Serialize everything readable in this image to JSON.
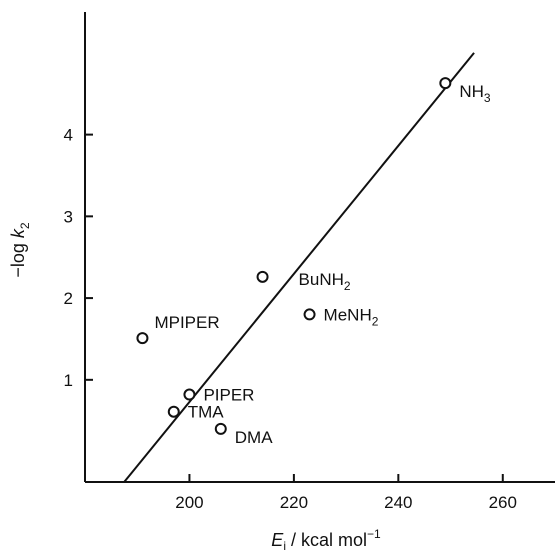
{
  "chart_data": {
    "type": "scatter",
    "xlabel": {
      "main": "E",
      "sub": "i",
      "rest": " / kcal  mol",
      "sup": "−1"
    },
    "ylabel": {
      "main": "−log ",
      "var": "k",
      "sub": "2"
    },
    "xlim": [
      180,
      270
    ],
    "ylim": [
      -0.25,
      5.5
    ],
    "x_ticks": [
      200,
      220,
      240,
      260
    ],
    "y_ticks": [
      1,
      2,
      3,
      4
    ],
    "grid": false,
    "points": [
      {
        "label": "NH",
        "label_sub": "3",
        "x": 249,
        "y": 4.63,
        "label_side": "right-below"
      },
      {
        "label": "BuNH",
        "label_sub": "2",
        "x": 214,
        "y": 2.26,
        "label_side": "right-far"
      },
      {
        "label": "MeNH",
        "label_sub": "2",
        "x": 223,
        "y": 1.8,
        "label_side": "right"
      },
      {
        "label": "MPIPER",
        "label_sub": "",
        "x": 191,
        "y": 1.51,
        "label_side": "right-above"
      },
      {
        "label": "PIPER",
        "label_sub": "",
        "x": 200,
        "y": 0.82,
        "label_side": "right"
      },
      {
        "label": "TMA",
        "label_sub": "",
        "x": 197,
        "y": 0.61,
        "label_side": "right"
      },
      {
        "label": "DMA",
        "label_sub": "",
        "x": 206,
        "y": 0.4,
        "label_side": "right-below"
      }
    ],
    "fit_line": {
      "x1": 187.5,
      "y1": -0.25,
      "x2": 254.5,
      "y2": 5.0
    }
  }
}
